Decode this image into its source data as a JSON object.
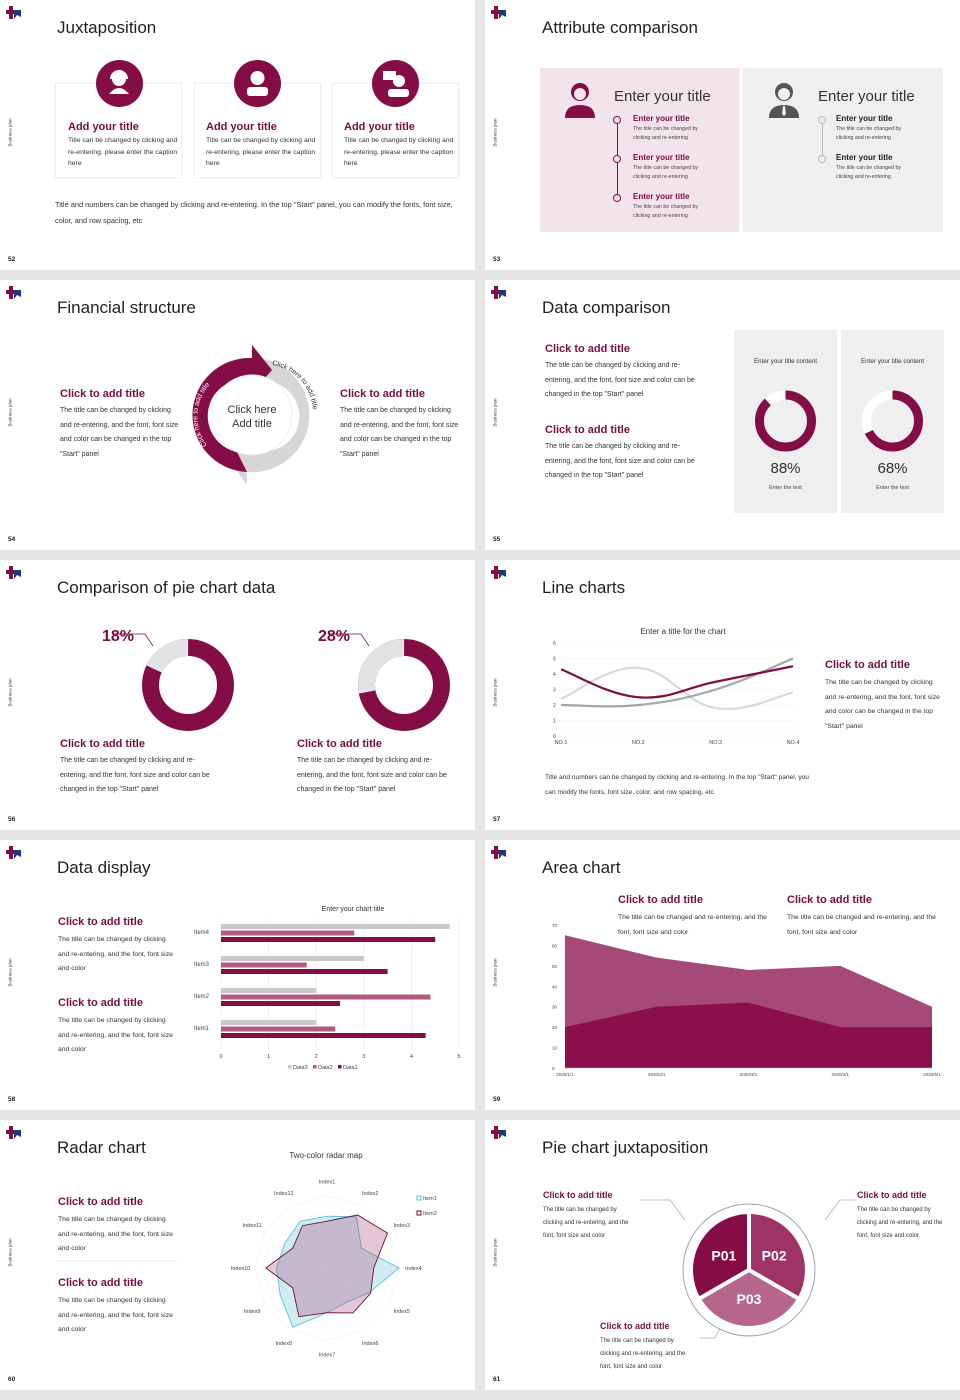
{
  "common": {
    "side_label": "Business plan"
  },
  "colors": {
    "maroon": "#850d45",
    "pink_panel": "#f3e4ec",
    "grey_panel": "#efefef",
    "mid_pink": "#b5577f",
    "light_grey": "#d9d9d9",
    "grey": "#a6a6a6",
    "cyan": "#5bc0d8"
  },
  "s52": {
    "page": "52",
    "title": "Juxtaposition",
    "cards": [
      {
        "icon": "headset-person-icon",
        "title": "Add your title",
        "text": "Title can be changed by clicking and re-entering, please enter the caption here"
      },
      {
        "icon": "person-icon",
        "title": "Add your title",
        "text": "Title can be changed by clicking and re-entering, please enter the caption here"
      },
      {
        "icon": "person-chat-icon",
        "title": "Add your title",
        "text": "Title can be changed by clicking and re-entering, please enter the caption here"
      }
    ],
    "footer": "Title and numbers can be changed by clicking and re-entering. In the top \"Start\" panel, you can modify the fonts, font size, color, and row spacing, etc"
  },
  "s53": {
    "page": "53",
    "title": "Attribute comparison",
    "panels": [
      {
        "icon": "woman-icon",
        "heading": "Enter your title",
        "items": [
          {
            "title": "Enter your title",
            "text": "The title can be changed by clicking and re-entering"
          },
          {
            "title": "Enter your title",
            "text": "The title can be changed by clicking and re-entering"
          },
          {
            "title": "Enter your title",
            "text": "The title can be changed by clicking and re-entering"
          }
        ]
      },
      {
        "icon": "man-icon",
        "heading": "Enter your title",
        "items": [
          {
            "title": "Enter your title",
            "text": "The title can be changed by clicking and re-entering"
          },
          {
            "title": "Enter your title",
            "text": "The title can be changed by clicking and re-entering"
          }
        ]
      }
    ]
  },
  "s54": {
    "page": "54",
    "title": "Financial structure",
    "left": {
      "title": "Click to add title",
      "text": "The title can be changed by clicking and re-entering, and the font, font size and color can be changed in the top \"Start\" panel"
    },
    "right": {
      "title": "Click to add title",
      "text": "The title can be changed by clicking and re-entering, and the font, font size and color can be changed in the top \"Start\" panel"
    },
    "center_line1": "Click here",
    "center_line2": "Add title",
    "arrow_left": "Click here to add title",
    "arrow_right": "Click here to add title"
  },
  "s55": {
    "page": "55",
    "title": "Data comparison",
    "blocks": [
      {
        "title": "Click to add title",
        "text": "The title can be changed by clicking and re-entering, and the font, font size and color can be changed in the top \"Start\" panel"
      },
      {
        "title": "Click to add title",
        "text": "The title can be changed by clicking and re-entering, and the font, font size and color can be changed in the top \"Start\" panel"
      }
    ],
    "cards": [
      {
        "title": "Enter your title content",
        "value": 88,
        "label": "88%",
        "caption": "Enter the text"
      },
      {
        "title": "Enter your title content",
        "value": 68,
        "label": "68%",
        "caption": "Enter the text"
      }
    ]
  },
  "s56": {
    "page": "56",
    "title": "Comparison of pie chart data",
    "items": [
      {
        "value": 18,
        "label": "18%",
        "title": "Click to add title",
        "text": "The title can be changed by clicking and re-entering, and the font, font size and color can be changed in the top \"Start\" panel"
      },
      {
        "value": 28,
        "label": "28%",
        "title": "Click to add title",
        "text": "The title can be changed by clicking and re-entering, and the font, font size and color can be changed in the top \"Start\" panel"
      }
    ]
  },
  "s57": {
    "page": "57",
    "title": "Line charts",
    "side": {
      "title": "Click to add title",
      "text": "The title can be changed by clicking and re-entering, and the font, font size and color can be changed in the top \"Start\" panel"
    },
    "footer": "Title and numbers can be changed by clicking and re-entering. In the top \"Start\" panel, you can modify the fonts, font size, color, and row spacing, etc"
  },
  "s58": {
    "page": "58",
    "title": "Data display",
    "blocks": [
      {
        "title": "Click to add title",
        "text": "The title can be changed by clicking and re-entering, and the font, font size and color"
      },
      {
        "title": "Click to add title",
        "text": "The title can be changed by clicking and re-entering, and the font, font size and color"
      }
    ]
  },
  "s59": {
    "page": "59",
    "title": "Area chart",
    "blocks": [
      {
        "title": "Click to add title",
        "text": "The title can be changed and re-entering, and the font, font size and color"
      },
      {
        "title": "Click to add title",
        "text": "The title can be changed and re-entering, and the font, font size and color"
      }
    ]
  },
  "s60": {
    "page": "60",
    "title": "Radar chart",
    "blocks": [
      {
        "title": "Click to add title",
        "text": "The title can be changed by clicking and re-entering, and the font, font size and color"
      },
      {
        "title": "Click to add title",
        "text": "The title can be changed by clicking and re-entering, and the font, font size and color"
      }
    ]
  },
  "s61": {
    "page": "61",
    "title": "Pie chart juxtaposition",
    "segments": [
      "P01",
      "P02",
      "P03"
    ],
    "blocks": [
      {
        "title": "Click to add title",
        "text": "The title can be changed by clicking and re-entering, and the font, font size and color"
      },
      {
        "title": "Click to add title",
        "text": "The title can be changed by clicking and re-entering, and the font, font size and color"
      },
      {
        "title": "Click to add title",
        "text": "The title can be changed by clicking and re-entering, and the font, font size and color"
      }
    ]
  },
  "chart_data": [
    {
      "type": "line",
      "title": "Enter a title for the chart",
      "categories": [
        "NO.1",
        "NO.2",
        "NO.3",
        "NO.4"
      ],
      "ylim": [
        0,
        6
      ],
      "yticks": [
        0,
        1,
        2,
        3,
        4,
        5,
        6
      ],
      "series": [
        {
          "values": [
            4.3,
            2.5,
            3.5,
            4.5
          ],
          "color": "#850d45"
        },
        {
          "values": [
            2.4,
            4.4,
            1.8,
            2.8
          ],
          "color": "#d9d9d9"
        },
        {
          "values": [
            2,
            2,
            3,
            5
          ],
          "color": "#a6a6a6"
        }
      ],
      "grid": true
    },
    {
      "type": "bar",
      "orientation": "horizontal",
      "title": "Enter your chart title",
      "categories": [
        "Item1",
        "Item2",
        "Item3",
        "Item4"
      ],
      "xlim": [
        0,
        5
      ],
      "xticks": [
        0,
        1,
        2,
        3,
        4,
        5
      ],
      "series": [
        {
          "name": "Data1",
          "values": [
            4.3,
            2.5,
            3.5,
            4.5
          ],
          "color": "#850d45"
        },
        {
          "name": "Data2",
          "values": [
            2.4,
            4.4,
            1.8,
            2.8
          ],
          "color": "#b5577f"
        },
        {
          "name": "Data3",
          "values": [
            2,
            2,
            3,
            4.8
          ],
          "color": "#c8c8c8"
        }
      ],
      "legend": "bottom",
      "grid": true
    },
    {
      "type": "area",
      "categories": [
        "2020/1/1",
        "2020/2/1",
        "2020/3/1",
        "2020/4/1",
        "2020/5/1"
      ],
      "ylim": [
        0,
        70
      ],
      "yticks": [
        0,
        10,
        20,
        30,
        40,
        50,
        60,
        70
      ],
      "series": [
        {
          "values": [
            65,
            54,
            48,
            50,
            30
          ],
          "color": "#a54a78"
        },
        {
          "values": [
            20,
            30,
            32,
            20,
            20
          ],
          "color": "#8a0f4a"
        }
      ]
    },
    {
      "type": "radar",
      "title": "Two-color radar map",
      "axes": [
        "Index1",
        "Index2",
        "Index3",
        "Index4",
        "Index5",
        "Index6",
        "Index7",
        "Index8",
        "Index9",
        "Index10",
        "Index11",
        "Index12"
      ],
      "rlim": [
        0,
        10
      ],
      "series": [
        {
          "name": "Item1",
          "values": [
            7.2,
            8.2,
            5.5,
            10,
            6.8,
            5.5,
            6.2,
            9.5,
            7.5,
            7,
            6.8,
            7.5
          ],
          "color": "#5bc0d8"
        },
        {
          "name": "Item2",
          "values": [
            6.5,
            8.5,
            9.7,
            6.5,
            7,
            7.2,
            6.2,
            7.8,
            5.5,
            8.5,
            5.5,
            6.8
          ],
          "color": "#6b0f3c"
        }
      ],
      "legend": "top-right"
    }
  ]
}
